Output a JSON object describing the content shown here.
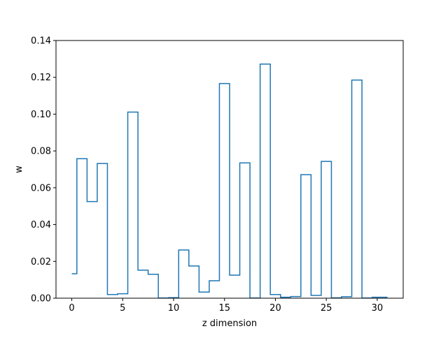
{
  "chart_data": {
    "type": "line",
    "drawstyle": "steps-mid",
    "title": "",
    "xlabel": "z dimension",
    "ylabel": "w",
    "xlim": [
      -1.55,
      32.55
    ],
    "ylim": [
      0,
      0.14
    ],
    "xticks": [
      0,
      5,
      10,
      15,
      20,
      25,
      30
    ],
    "xtick_labels": [
      "0",
      "5",
      "10",
      "15",
      "20",
      "25",
      "30"
    ],
    "yticks": [
      0.0,
      0.02,
      0.04,
      0.06,
      0.08,
      0.1,
      0.12,
      0.14
    ],
    "ytick_labels": [
      "0.00",
      "0.02",
      "0.04",
      "0.06",
      "0.08",
      "0.10",
      "0.12",
      "0.14"
    ],
    "grid": false,
    "series": [
      {
        "color": "#1f77b4",
        "x": [
          0,
          1,
          2,
          3,
          4,
          5,
          6,
          7,
          8,
          9,
          10,
          11,
          12,
          13,
          14,
          15,
          16,
          17,
          18,
          19,
          20,
          21,
          22,
          23,
          24,
          25,
          26,
          27,
          28,
          29,
          30,
          31
        ],
        "values": [
          0.0133,
          0.0758,
          0.0525,
          0.0732,
          0.002,
          0.0024,
          0.1011,
          0.0152,
          0.013,
          0.0001,
          0.0003,
          0.0262,
          0.0175,
          0.0033,
          0.0095,
          0.1166,
          0.0125,
          0.0735,
          0.0001,
          0.1272,
          0.002,
          0.0005,
          0.0009,
          0.0671,
          0.0015,
          0.0743,
          0.0002,
          0.0008,
          0.1185,
          0.0001,
          0.0005,
          0.0005
        ]
      }
    ]
  }
}
